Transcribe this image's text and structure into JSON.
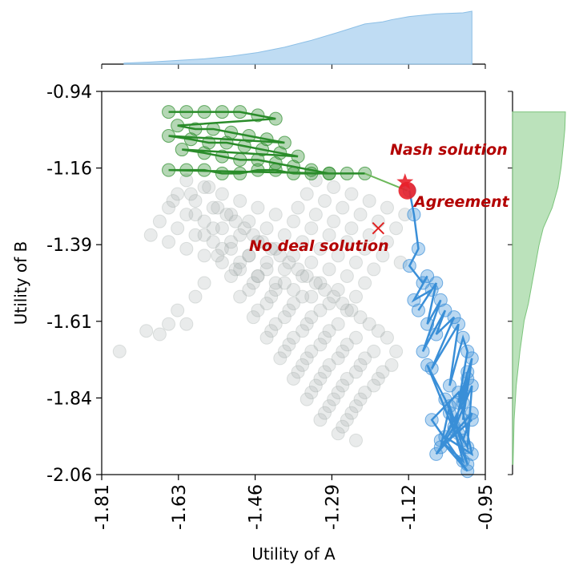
{
  "chart_data": {
    "type": "scatter",
    "title": "",
    "xlabel": "Utility of A",
    "ylabel": "Utility of B",
    "xlim": [
      -1.81,
      -0.95
    ],
    "ylim": [
      -2.06,
      -0.94
    ],
    "xticks": [
      "-1.81",
      "-1.63",
      "-1.46",
      "-1.29",
      "-1.12",
      "-0.95"
    ],
    "yticks": [
      "-0.94",
      "-1.16",
      "-1.39",
      "-1.61",
      "-1.84",
      "-2.06"
    ],
    "grid": false,
    "colors": {
      "outcomes": "#9aa5a3",
      "agent_a": "#2a8c2a",
      "agent_b": "#3a8fd8",
      "agreement": "#e8202a",
      "nash": "#e8202a",
      "no_deal": "#e02020",
      "annotation": "#b30000",
      "hist_a": "#a9d0ef",
      "hist_b": "#a4d8a4"
    },
    "annotations": {
      "nash": {
        "label": "Nash solution",
        "x": -1.13,
        "y": -1.205
      },
      "agreement": {
        "label": "Agreement",
        "x": -1.123,
        "y": -1.23
      },
      "no_deal": {
        "label": "No deal solution",
        "x": -1.19,
        "y": -1.34
      }
    },
    "series": [
      {
        "role": "agent_a_offers",
        "x": [
          -1.66,
          -1.62,
          -1.58,
          -1.54,
          -1.5,
          -1.46,
          -1.42,
          -1.64,
          -1.6,
          -1.56,
          -1.52,
          -1.48,
          -1.44,
          -1.4,
          -1.66,
          -1.61,
          -1.57,
          -1.53,
          -1.49,
          -1.45,
          -1.41,
          -1.37,
          -1.63,
          -1.58,
          -1.54,
          -1.5,
          -1.46,
          -1.42,
          -1.38,
          -1.34,
          -1.3,
          -1.66,
          -1.62,
          -1.58,
          -1.54,
          -1.5,
          -1.46,
          -1.42,
          -1.38,
          -1.34,
          -1.3,
          -1.26,
          -1.22
        ],
        "y": [
          -1.0,
          -1.0,
          -1.0,
          -1.0,
          -1.0,
          -1.01,
          -1.02,
          -1.04,
          -1.05,
          -1.05,
          -1.06,
          -1.07,
          -1.08,
          -1.09,
          -1.07,
          -1.08,
          -1.09,
          -1.09,
          -1.1,
          -1.11,
          -1.12,
          -1.13,
          -1.11,
          -1.12,
          -1.13,
          -1.14,
          -1.14,
          -1.15,
          -1.16,
          -1.17,
          -1.18,
          -1.17,
          -1.17,
          -1.17,
          -1.18,
          -1.18,
          -1.17,
          -1.17,
          -1.18,
          -1.18,
          -1.18,
          -1.18,
          -1.18
        ]
      },
      {
        "role": "agent_b_offers",
        "x": [
          -1.12,
          -1.11,
          -1.1,
          -1.12,
          -1.09,
          -1.08,
          -1.11,
          -1.07,
          -1.1,
          -1.06,
          -1.08,
          -1.05,
          -1.09,
          -1.04,
          -1.06,
          -1.02,
          -1.07,
          -1.01,
          -1.03,
          -1.0,
          -0.99,
          -1.01,
          -0.98,
          -1.0,
          -0.99,
          -1.02,
          -0.98,
          -0.99,
          -1.03,
          -1.0,
          -1.05,
          -0.99,
          -1.07,
          -1.01,
          -0.98,
          -1.04,
          -1.0,
          -0.99,
          -1.02,
          -1.06,
          -0.98,
          -1.0,
          -1.04,
          -1.08,
          -0.99,
          -1.01,
          -1.03,
          -1.05,
          -0.98
        ],
        "y": [
          -1.23,
          -1.3,
          -1.4,
          -1.45,
          -1.5,
          -1.48,
          -1.55,
          -1.52,
          -1.58,
          -1.5,
          -1.62,
          -1.55,
          -1.7,
          -1.58,
          -1.65,
          -1.6,
          -1.75,
          -1.62,
          -1.8,
          -1.66,
          -1.7,
          -1.85,
          -1.72,
          -1.9,
          -1.76,
          -1.93,
          -1.8,
          -1.98,
          -1.88,
          -2.02,
          -1.96,
          -2.05,
          -1.9,
          -1.82,
          -2.0,
          -1.95,
          -1.85,
          -1.78,
          -1.92,
          -2.0,
          -1.88,
          -1.96,
          -1.84,
          -1.74,
          -2.03,
          -1.94,
          -1.86,
          -1.98,
          -1.9
        ]
      },
      {
        "role": "agreement",
        "x": [
          -1.125
        ],
        "y": [
          -1.23
        ]
      },
      {
        "role": "nash",
        "x": [
          -1.13
        ],
        "y": [
          -1.205
        ]
      },
      {
        "role": "no_deal",
        "x": [
          -1.19
        ],
        "y": [
          -1.34
        ]
      }
    ],
    "outcome_cloud": {
      "x": [
        -1.77,
        -1.71,
        -1.68,
        -1.66,
        -1.64,
        -1.62,
        -1.6,
        -1.58,
        -1.65,
        -1.61,
        -1.57,
        -1.55,
        -1.53,
        -1.51,
        -1.49,
        -1.47,
        -1.45,
        -1.43,
        -1.41,
        -1.39,
        -1.37,
        -1.35,
        -1.33,
        -1.31,
        -1.29,
        -1.27,
        -1.25,
        -1.23,
        -1.21,
        -1.19,
        -1.17,
        -1.15,
        -1.6,
        -1.56,
        -1.52,
        -1.48,
        -1.44,
        -1.4,
        -1.36,
        -1.32,
        -1.28,
        -1.24,
        -1.2,
        -1.16,
        -1.58,
        -1.54,
        -1.5,
        -1.46,
        -1.42,
        -1.38,
        -1.34,
        -1.3,
        -1.26,
        -1.22,
        -1.18,
        -1.55,
        -1.51,
        -1.47,
        -1.43,
        -1.39,
        -1.35,
        -1.31,
        -1.27,
        -1.23,
        -1.19,
        -1.52,
        -1.48,
        -1.44,
        -1.4,
        -1.36,
        -1.32,
        -1.28,
        -1.24,
        -1.2,
        -1.5,
        -1.46,
        -1.42,
        -1.38,
        -1.34,
        -1.3,
        -1.26,
        -1.22,
        -1.47,
        -1.43,
        -1.39,
        -1.35,
        -1.31,
        -1.27,
        -1.23,
        -1.44,
        -1.4,
        -1.36,
        -1.32,
        -1.28,
        -1.24,
        -1.41,
        -1.37,
        -1.33,
        -1.29,
        -1.25,
        -1.38,
        -1.34,
        -1.3,
        -1.26,
        -1.35,
        -1.31,
        -1.27,
        -1.32,
        -1.28,
        -1.24,
        -1.62,
        -1.58,
        -1.54,
        -1.5,
        -1.46,
        -1.42,
        -1.38,
        -1.34,
        -1.3,
        -1.26,
        -1.22,
        -1.18,
        -1.14,
        -1.64,
        -1.6,
        -1.56,
        -1.52,
        -1.48,
        -1.44,
        -1.4,
        -1.36,
        -1.32,
        -1.28,
        -1.24,
        -1.2,
        -1.66,
        -1.62,
        -1.58,
        -1.54,
        -1.5,
        -1.46,
        -1.42,
        -1.38,
        -1.34,
        -1.3,
        -1.26,
        -1.22,
        -1.68,
        -1.64,
        -1.6,
        -1.56,
        -1.52,
        -1.48,
        -1.44,
        -1.4,
        -1.36,
        -1.32,
        -1.28,
        -1.24,
        -1.7,
        -1.66,
        -1.62,
        -1.58,
        -1.54,
        -1.5,
        -1.46,
        -1.42,
        -1.38,
        -1.34,
        -1.3,
        -1.26,
        -1.33,
        -1.29,
        -1.25,
        -1.21,
        -1.17,
        -1.13,
        -1.35,
        -1.31,
        -1.27,
        -1.23,
        -1.19,
        -1.15,
        -1.37,
        -1.33,
        -1.29,
        -1.25,
        -1.21,
        -1.17
      ],
      "y": [
        -1.7,
        -1.64,
        -1.65,
        -1.62,
        -1.58,
        -1.62,
        -1.54,
        -1.5,
        -1.26,
        -1.24,
        -1.22,
        -1.28,
        -1.3,
        -1.32,
        -1.34,
        -1.36,
        -1.38,
        -1.4,
        -1.42,
        -1.44,
        -1.46,
        -1.48,
        -1.5,
        -1.52,
        -1.54,
        -1.56,
        -1.58,
        -1.6,
        -1.62,
        -1.64,
        -1.66,
        -1.7,
        -1.3,
        -1.34,
        -1.38,
        -1.42,
        -1.46,
        -1.5,
        -1.54,
        -1.58,
        -1.62,
        -1.66,
        -1.7,
        -1.74,
        -1.36,
        -1.4,
        -1.44,
        -1.48,
        -1.52,
        -1.56,
        -1.6,
        -1.64,
        -1.68,
        -1.72,
        -1.76,
        -1.42,
        -1.46,
        -1.5,
        -1.54,
        -1.58,
        -1.62,
        -1.66,
        -1.7,
        -1.74,
        -1.78,
        -1.48,
        -1.52,
        -1.56,
        -1.6,
        -1.64,
        -1.68,
        -1.72,
        -1.76,
        -1.8,
        -1.54,
        -1.58,
        -1.62,
        -1.66,
        -1.7,
        -1.74,
        -1.78,
        -1.82,
        -1.6,
        -1.64,
        -1.68,
        -1.72,
        -1.76,
        -1.8,
        -1.84,
        -1.66,
        -1.7,
        -1.74,
        -1.78,
        -1.82,
        -1.86,
        -1.72,
        -1.76,
        -1.8,
        -1.84,
        -1.88,
        -1.78,
        -1.82,
        -1.86,
        -1.9,
        -1.84,
        -1.88,
        -1.92,
        -1.9,
        -1.94,
        -1.96,
        -1.2,
        -1.22,
        -1.24,
        -1.26,
        -1.28,
        -1.3,
        -1.32,
        -1.34,
        -1.36,
        -1.38,
        -1.4,
        -1.42,
        -1.44,
        -1.24,
        -1.26,
        -1.28,
        -1.3,
        -1.32,
        -1.34,
        -1.36,
        -1.38,
        -1.4,
        -1.42,
        -1.44,
        -1.46,
        -1.28,
        -1.3,
        -1.32,
        -1.34,
        -1.36,
        -1.38,
        -1.4,
        -1.42,
        -1.44,
        -1.46,
        -1.48,
        -1.5,
        -1.32,
        -1.34,
        -1.36,
        -1.38,
        -1.4,
        -1.42,
        -1.44,
        -1.46,
        -1.48,
        -1.5,
        -1.52,
        -1.54,
        -1.36,
        -1.38,
        -1.4,
        -1.42,
        -1.44,
        -1.46,
        -1.48,
        -1.5,
        -1.52,
        -1.54,
        -1.56,
        -1.58,
        -1.2,
        -1.22,
        -1.24,
        -1.26,
        -1.28,
        -1.3,
        -1.24,
        -1.26,
        -1.28,
        -1.3,
        -1.32,
        -1.34,
        -1.28,
        -1.3,
        -1.32,
        -1.34,
        -1.36,
        -1.38
      ]
    },
    "hist_a": {
      "x": [
        -1.76,
        -1.7,
        -1.64,
        -1.58,
        -1.52,
        -1.46,
        -1.4,
        -1.34,
        -1.28,
        -1.22,
        -1.18,
        -1.16,
        -1.12,
        -1.06,
        -1.0,
        -0.98
      ],
      "cumulative_fraction": [
        0.02,
        0.04,
        0.07,
        0.1,
        0.15,
        0.22,
        0.32,
        0.45,
        0.6,
        0.76,
        0.8,
        0.84,
        0.9,
        0.95,
        0.97,
        1.0
      ]
    },
    "hist_b": {
      "y": [
        -1.0,
        -1.05,
        -1.1,
        -1.16,
        -1.22,
        -1.28,
        -1.34,
        -1.39,
        -1.45,
        -1.5,
        -1.56,
        -1.61,
        -1.7,
        -1.8,
        -1.9,
        -2.03
      ],
      "cumulative_fraction": [
        1.0,
        0.99,
        0.96,
        0.92,
        0.86,
        0.75,
        0.58,
        0.5,
        0.43,
        0.37,
        0.3,
        0.22,
        0.14,
        0.07,
        0.03,
        0.01
      ]
    }
  }
}
